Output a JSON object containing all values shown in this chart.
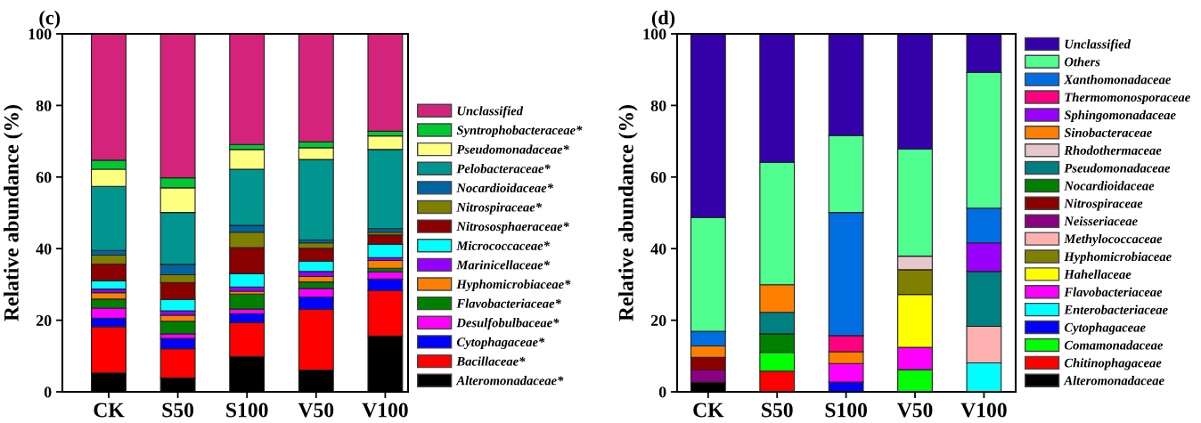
{
  "chart_data": [
    {
      "type": "bar",
      "stacked": true,
      "title": "(c)",
      "ylabel": "Relative abundance (%)",
      "categories": [
        "CK",
        "S50",
        "S100",
        "V50",
        "V100"
      ],
      "ylim": [
        0,
        100
      ],
      "yticks": [
        0,
        20,
        40,
        60,
        80,
        100
      ],
      "grid": false,
      "legend": "right",
      "series": [
        {
          "name": "Alteromonadaceae*",
          "color": "#000000",
          "values": [
            5.3,
            3.9,
            9.9,
            6.1,
            15.6
          ]
        },
        {
          "name": "Bacillaceae*",
          "color": "#ff0000",
          "values": [
            12.9,
            8.1,
            9.4,
            16.9,
            12.7
          ]
        },
        {
          "name": "Cytophagaceae*",
          "color": "#0000ff",
          "values": [
            2.4,
            2.9,
            2.5,
            3.5,
            3.2
          ]
        },
        {
          "name": "Desulfobulbaceae*",
          "color": "#ff00ff",
          "values": [
            2.8,
            1.3,
            1.3,
            2.4,
            2.0
          ]
        },
        {
          "name": "Flavobacteriaceae*",
          "color": "#008000",
          "values": [
            2.5,
            3.5,
            4.2,
            1.8,
            1.0
          ]
        },
        {
          "name": "Hyphomicrobiaceae*",
          "color": "#ff8000",
          "values": [
            1.8,
            1.7,
            0.8,
            1.5,
            2.2
          ]
        },
        {
          "name": "Marinicellaceae*",
          "color": "#9400ff",
          "values": [
            1.0,
            1.2,
            1.2,
            1.4,
            0.8
          ]
        },
        {
          "name": "Micrococcaceae*",
          "color": "#00ffff",
          "values": [
            2.3,
            3.2,
            3.7,
            2.9,
            3.7
          ]
        },
        {
          "name": "Nitrososphaeraceae*",
          "color": "#8b0000",
          "values": [
            4.7,
            4.7,
            7.3,
            3.6,
            2.6
          ]
        },
        {
          "name": "Nitrospiraceae*",
          "color": "#808000",
          "values": [
            2.5,
            2.2,
            4.3,
            1.5,
            0.8
          ]
        },
        {
          "name": "Nocardioidaceae*",
          "color": "#0064a0",
          "values": [
            1.3,
            2.9,
            1.9,
            0.8,
            1.0
          ]
        },
        {
          "name": "Pelobacteraceae*",
          "color": "#009690",
          "values": [
            17.9,
            14.5,
            15.7,
            22.5,
            22.1
          ]
        },
        {
          "name": "Pseudomonadaceae*",
          "color": "#ffff80",
          "values": [
            4.8,
            6.9,
            5.5,
            3.3,
            3.8
          ]
        },
        {
          "name": "Syntrophobacteraceae*",
          "color": "#00c832",
          "values": [
            2.5,
            2.8,
            1.4,
            1.6,
            1.3
          ]
        },
        {
          "name": "Unclassified",
          "color": "#d4237a",
          "values": [
            35.3,
            40.2,
            30.9,
            30.2,
            27.2
          ]
        }
      ]
    },
    {
      "type": "bar",
      "stacked": true,
      "title": "(d)",
      "ylabel": "Relative abundance (%)",
      "categories": [
        "CK",
        "S50",
        "S100",
        "V50",
        "V100"
      ],
      "ylim": [
        0,
        100
      ],
      "yticks": [
        0,
        20,
        40,
        60,
        80,
        100
      ],
      "grid": false,
      "legend": "right",
      "series": [
        {
          "name": "Alteromonadaceae",
          "color": "#000000",
          "values": [
            2.7,
            null,
            null,
            null,
            null
          ]
        },
        {
          "name": "Chitinophagaceae",
          "color": "#ff0000",
          "values": [
            null,
            5.8,
            null,
            null,
            null
          ]
        },
        {
          "name": "Comamonadaceae",
          "color": "#00ff00",
          "values": [
            null,
            5.2,
            null,
            6.2,
            null
          ]
        },
        {
          "name": "Cytophagaceae",
          "color": "#0000ff",
          "values": [
            null,
            null,
            2.7,
            null,
            null
          ]
        },
        {
          "name": "Enterobacteriaceae",
          "color": "#00ffff",
          "values": [
            null,
            null,
            null,
            null,
            8.1
          ]
        },
        {
          "name": "Flavobacteriaceae",
          "color": "#ff00ff",
          "values": [
            null,
            null,
            5.2,
            6.2,
            null
          ]
        },
        {
          "name": "Hahellaceae",
          "color": "#ffff00",
          "values": [
            null,
            null,
            null,
            14.8,
            null
          ]
        },
        {
          "name": "Hyphomicrobiaceae",
          "color": "#808000",
          "values": [
            null,
            null,
            null,
            6.9,
            null
          ]
        },
        {
          "name": "Methylococcaceae",
          "color": "#ffb0b0",
          "values": [
            null,
            null,
            null,
            null,
            10.2
          ]
        },
        {
          "name": "Neisseriaceae",
          "color": "#8b0080",
          "values": [
            3.4,
            null,
            null,
            null,
            null
          ]
        },
        {
          "name": "Nitrospiraceae",
          "color": "#8b0000",
          "values": [
            3.5,
            null,
            null,
            null,
            null
          ]
        },
        {
          "name": "Nocardioidaceae",
          "color": "#008000",
          "values": [
            null,
            5.2,
            null,
            null,
            null
          ]
        },
        {
          "name": "Pseudomonadaceae",
          "color": "#008080",
          "values": [
            null,
            6.0,
            null,
            null,
            15.3
          ]
        },
        {
          "name": "Rhodothermaceae",
          "color": "#e6c8cc",
          "values": [
            null,
            null,
            null,
            3.8,
            null
          ]
        },
        {
          "name": "Sinobacteraceae",
          "color": "#ff8000",
          "values": [
            3.2,
            7.7,
            3.3,
            null,
            null
          ]
        },
        {
          "name": "Sphingomonadaceae",
          "color": "#9900ff",
          "values": [
            null,
            null,
            null,
            null,
            8.0
          ]
        },
        {
          "name": "Thermomonosporaceae",
          "color": "#ff0080",
          "values": [
            null,
            null,
            4.5,
            null,
            null
          ]
        },
        {
          "name": "Xanthomonadaceae",
          "color": "#006ee0",
          "values": [
            4.1,
            null,
            34.4,
            null,
            9.7
          ]
        },
        {
          "name": "Others",
          "color": "#50ff90",
          "values": [
            31.8,
            34.2,
            21.5,
            29.9,
            37.9
          ]
        },
        {
          "name": "Unclassified",
          "color": "#3300aa",
          "values": [
            51.3,
            35.9,
            28.4,
            32.2,
            10.8
          ]
        }
      ]
    }
  ]
}
